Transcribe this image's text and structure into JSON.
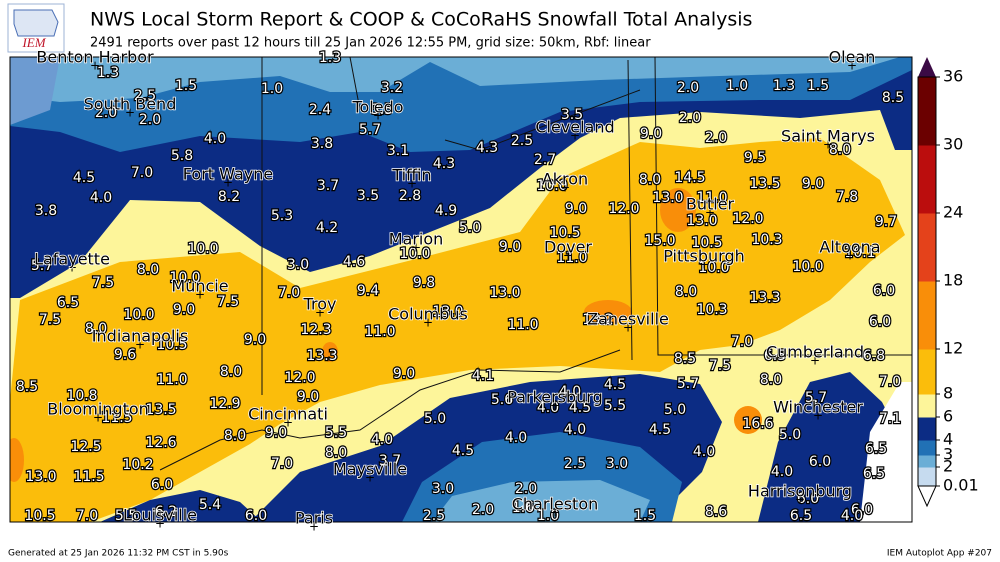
{
  "header": {
    "logo": "IEM",
    "title": "NWS Local Storm Report & COOP & CoCoRaHS Snowfall Total Analysis",
    "subtitle": "2491 reports over past 12 hours till 25 Jan 2026 12:55 PM, grid size: 50km, Rbf: linear"
  },
  "map": {
    "cities": [
      "Benton Harbor",
      "South Bend",
      "Toledo",
      "Cleveland",
      "Saint Marys",
      "Olean",
      "Fort Wayne",
      "Tiffin",
      "Akron",
      "Butler",
      "Marion",
      "Dover",
      "Pittsburgh",
      "Altoona",
      "Lafayette",
      "Muncie",
      "Troy",
      "Columbus",
      "Zanesville",
      "Indianapolis",
      "Cumberland",
      "Bloomington",
      "Cincinnati",
      "Parkersburg",
      "Winchester",
      "Maysville",
      "Harrisonburg",
      "Louisville",
      "Charleston",
      "Paris"
    ],
    "reports": [
      "1.3",
      "1.5",
      "1.0",
      "1.3",
      "3.2",
      "2.5",
      "2.0",
      "2.0",
      "2.4",
      "3.5",
      "5.7",
      "4.0",
      "5.8",
      "3.8",
      "3.1",
      "4.3",
      "4.3",
      "2.5",
      "2.7",
      "3.5",
      "2.0",
      "1.0",
      "1.3",
      "1.5",
      "8.5",
      "2.0",
      "2.0",
      "9.0",
      "9.5",
      "8.0",
      "4.5",
      "7.0",
      "4.0",
      "8.2",
      "3.7",
      "3.5",
      "2.8",
      "10.0",
      "8.0",
      "14.5",
      "13.0",
      "11.0",
      "13.5",
      "9.0",
      "7.8",
      "9.7",
      "3.8",
      "5.3",
      "4.2",
      "4.9",
      "5.0",
      "9.0",
      "12.0",
      "13.0",
      "12.0",
      "10.5",
      "15.0",
      "10.5",
      "10.3",
      "10.1",
      "10.0",
      "3.0",
      "4.6",
      "10.0",
      "9.0",
      "11.0",
      "10.0",
      "10.0",
      "5.7",
      "7.5",
      "8.0",
      "10.0",
      "6.0",
      "6.5",
      "10.0",
      "9.0",
      "7.5",
      "7.0",
      "9.4",
      "9.8",
      "13.0",
      "8.0",
      "13.3",
      "7.5",
      "8.0",
      "13.0",
      "11.0",
      "13.2",
      "10.3",
      "6.0",
      "9.6",
      "10.5",
      "9.0",
      "12.3",
      "11.0",
      "7.0",
      "13.3",
      "8.5",
      "7.5",
      "6.5",
      "6.8",
      "11.0",
      "8.0",
      "12.0",
      "9.0",
      "4.1",
      "5.7",
      "8.0",
      "7.0",
      "8.5",
      "9.0",
      "4.0",
      "4.5",
      "10.8",
      "5.6",
      "4.0",
      "4.5",
      "5.5",
      "11.5",
      "13.5",
      "12.9",
      "5.7",
      "5.0",
      "5.0",
      "16.6",
      "7.1",
      "8.0",
      "9.0",
      "5.5",
      "4.0",
      "4.0",
      "4.0",
      "4.5",
      "5.0",
      "12.5",
      "12.6",
      "4.5",
      "4.0",
      "6.5",
      "7.0",
      "8.0",
      "3.7",
      "2.5",
      "3.0",
      "6.0",
      "10.2",
      "13.0",
      "11.5",
      "6.0",
      "6.5",
      "3.0",
      "4.0",
      "2.0",
      "5.4",
      "6.2",
      "6.0",
      "6.0",
      "10.5",
      "7.0",
      "5.5",
      "2.5",
      "2.0",
      "1.6",
      "1.0",
      "1.5",
      "8.6",
      "6.5",
      "6.0",
      "4.0"
    ]
  },
  "colorbar": {
    "ticks": [
      0.01,
      2,
      3,
      4,
      6,
      8,
      12,
      18,
      24,
      30,
      36
    ],
    "colors": [
      "#c6dbef",
      "#6baed6",
      "#2171b5",
      "#0c2c84",
      "#fdf59a",
      "#fbbd0b",
      "#f98e09",
      "#e4421b",
      "#bb0d0d",
      "#6b0000"
    ],
    "extend_color": "#3b0a45"
  },
  "footer": {
    "left": "Generated at 25 Jan 2026 11:32 PM CST in 5.90s",
    "right": "IEM Autoplot App #207"
  }
}
